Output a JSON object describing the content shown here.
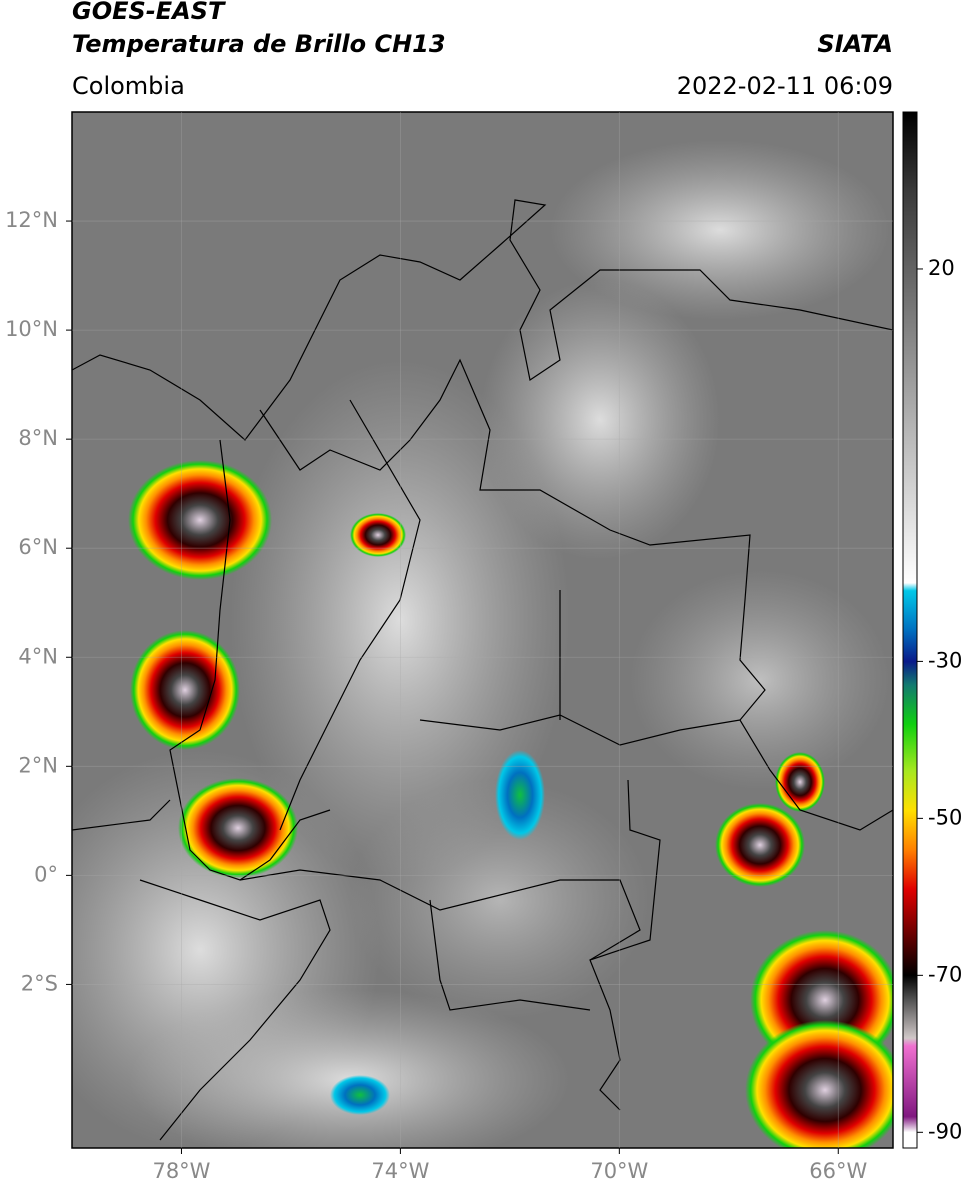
{
  "header": {
    "title": "GOES-EAST",
    "subtitle": "Temperatura de Brillo CH13",
    "source": "SIATA",
    "region": "Colombia",
    "datetime": "2022-02-11 06:09"
  },
  "map": {
    "xlim": [
      -80,
      -65
    ],
    "ylim": [
      -5,
      14
    ],
    "xticks": [
      {
        "value": -78,
        "label": "78°W"
      },
      {
        "value": -74,
        "label": "74°W"
      },
      {
        "value": -70,
        "label": "70°W"
      },
      {
        "value": -66,
        "label": "66°W"
      }
    ],
    "yticks": [
      {
        "value": 12,
        "label": "12°N"
      },
      {
        "value": 10,
        "label": "10°N"
      },
      {
        "value": 8,
        "label": "8°N"
      },
      {
        "value": 6,
        "label": "6°N"
      },
      {
        "value": 4,
        "label": "4°N"
      },
      {
        "value": 2,
        "label": "2°N"
      },
      {
        "value": 0,
        "label": "0°"
      },
      {
        "value": -2,
        "label": "2°S"
      }
    ],
    "grid": true
  },
  "colorbar": {
    "lim": [
      -92,
      40
    ],
    "ticks": [
      20,
      -30,
      -50,
      -70,
      -90
    ],
    "colormap": [
      {
        "value": 40,
        "color": "#000000"
      },
      {
        "value": 30,
        "color": "#3a3a3a"
      },
      {
        "value": 15,
        "color": "#777777"
      },
      {
        "value": 0,
        "color": "#b4b4b4"
      },
      {
        "value": -20,
        "color": "#ffffff"
      },
      {
        "value": -21,
        "color": "#00c8e8"
      },
      {
        "value": -26,
        "color": "#0070c0"
      },
      {
        "value": -30,
        "color": "#0a1a8a"
      },
      {
        "value": -33,
        "color": "#127a70"
      },
      {
        "value": -38,
        "color": "#10d010"
      },
      {
        "value": -44,
        "color": "#a8e820"
      },
      {
        "value": -49,
        "color": "#ffe000"
      },
      {
        "value": -54,
        "color": "#ff8000"
      },
      {
        "value": -59,
        "color": "#e00000"
      },
      {
        "value": -66,
        "color": "#500000"
      },
      {
        "value": -70,
        "color": "#000000"
      },
      {
        "value": -73,
        "color": "#505050"
      },
      {
        "value": -78,
        "color": "#d0c8c8"
      },
      {
        "value": -79,
        "color": "#f070d0"
      },
      {
        "value": -88,
        "color": "#801880"
      },
      {
        "value": -90,
        "color": "#ffffff"
      }
    ]
  }
}
